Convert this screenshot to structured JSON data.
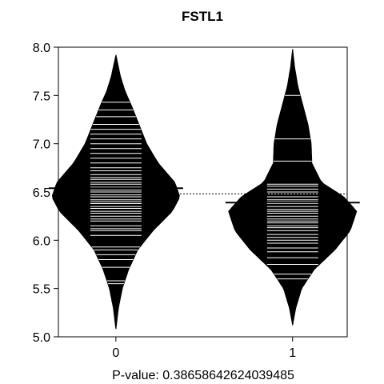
{
  "chart_data": {
    "type": "beanplot",
    "title": "FSTL1",
    "xlabel": "",
    "ylabel": "",
    "ylim": [
      5.0,
      8.0
    ],
    "yticks": [
      "5.0",
      "5.5",
      "6.0",
      "6.5",
      "7.0",
      "7.5",
      "8.0"
    ],
    "categories": [
      "0",
      "1"
    ],
    "overall_mean": 6.48,
    "footer_label": "P-value:",
    "footer_value": "0.38658642624039485",
    "groups": [
      {
        "category": "0",
        "mean": 6.54,
        "range": [
          5.08,
          7.92
        ],
        "density": [
          [
            5.08,
            0.0
          ],
          [
            5.3,
            0.04
          ],
          [
            5.5,
            0.1
          ],
          [
            5.7,
            0.2
          ],
          [
            5.9,
            0.34
          ],
          [
            6.1,
            0.58
          ],
          [
            6.3,
            0.88
          ],
          [
            6.45,
            1.0
          ],
          [
            6.6,
            0.92
          ],
          [
            6.8,
            0.66
          ],
          [
            7.0,
            0.48
          ],
          [
            7.2,
            0.36
          ],
          [
            7.4,
            0.24
          ],
          [
            7.55,
            0.14
          ],
          [
            7.7,
            0.07
          ],
          [
            7.92,
            0.0
          ]
        ],
        "observations": [
          5.55,
          5.58,
          5.72,
          5.8,
          5.85,
          5.9,
          5.93,
          6.05,
          6.1,
          6.12,
          6.15,
          6.2,
          6.22,
          6.25,
          6.28,
          6.3,
          6.33,
          6.35,
          6.38,
          6.4,
          6.42,
          6.45,
          6.47,
          6.5,
          6.52,
          6.55,
          6.58,
          6.6,
          6.63,
          6.65,
          6.68,
          6.72,
          6.75,
          6.8,
          6.85,
          6.9,
          6.95,
          7.0,
          7.05,
          7.1,
          7.15,
          7.2,
          7.28,
          7.35,
          7.43
        ]
      },
      {
        "category": "1",
        "mean": 6.39,
        "range": [
          5.12,
          7.98
        ],
        "density": [
          [
            5.12,
            0.0
          ],
          [
            5.3,
            0.05
          ],
          [
            5.5,
            0.14
          ],
          [
            5.7,
            0.34
          ],
          [
            5.9,
            0.66
          ],
          [
            6.1,
            0.9
          ],
          [
            6.3,
            1.0
          ],
          [
            6.45,
            0.8
          ],
          [
            6.6,
            0.45
          ],
          [
            6.8,
            0.3
          ],
          [
            7.0,
            0.29
          ],
          [
            7.2,
            0.24
          ],
          [
            7.4,
            0.16
          ],
          [
            7.6,
            0.08
          ],
          [
            7.8,
            0.03
          ],
          [
            7.98,
            0.0
          ]
        ],
        "observations": [
          5.6,
          5.65,
          5.75,
          5.82,
          5.88,
          5.92,
          5.97,
          6.0,
          6.03,
          6.06,
          6.1,
          6.13,
          6.15,
          6.18,
          6.2,
          6.22,
          6.25,
          6.28,
          6.3,
          6.32,
          6.35,
          6.38,
          6.4,
          6.42,
          6.45,
          6.48,
          6.5,
          6.53,
          6.56,
          6.58,
          6.82,
          7.05,
          7.5
        ]
      }
    ]
  }
}
